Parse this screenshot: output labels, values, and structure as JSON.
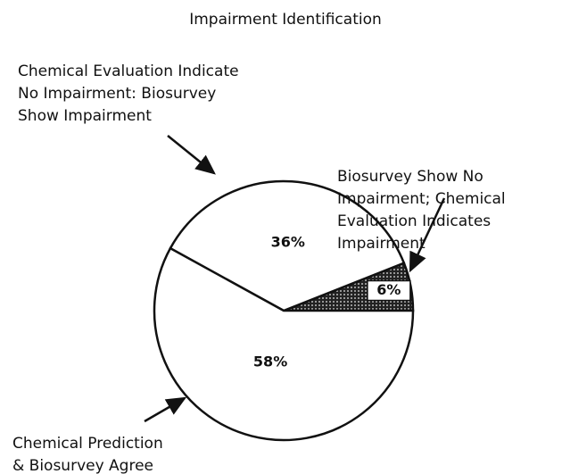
{
  "chart_data": {
    "type": "pie",
    "title": "Impairment Identification",
    "categories": [
      null,
      null,
      null
    ],
    "values": [
      6,
      36,
      58
    ],
    "value_labels": [
      "6%",
      "36%",
      "58%"
    ],
    "colors": [
      "#444444",
      "#ffffff",
      "#ffffff"
    ],
    "annotations": [
      [
        "Biosurvey Show No",
        "Impairment; Chemical",
        "Evaluation Indicates",
        "Impairment"
      ],
      [
        "Chemical Evaluation Indicate",
        "No Impairment: Biosurvey",
        "Show Impairment"
      ],
      [
        "Chemical Prediction",
        "& Biosurvey Agree"
      ]
    ]
  }
}
